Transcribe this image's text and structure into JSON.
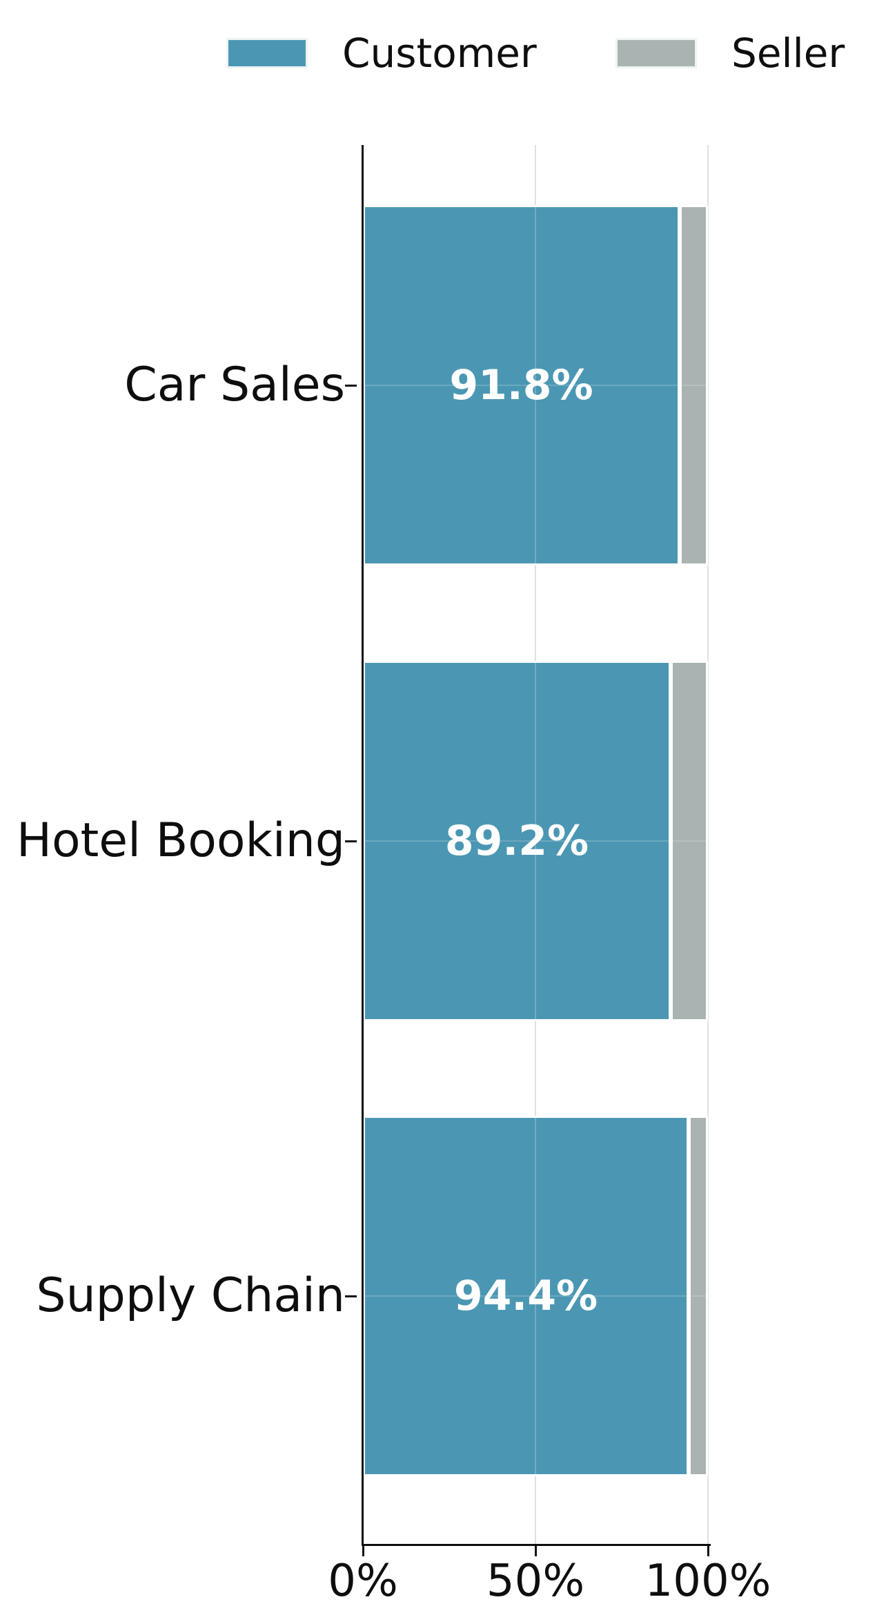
{
  "legend": {
    "entries": [
      {
        "label": "Customer",
        "color": "#4B97B3"
      },
      {
        "label": "Seller",
        "color": "#A9B3B1"
      }
    ]
  },
  "chart_data": {
    "type": "bar",
    "orientation": "horizontal",
    "stacked": true,
    "title": "",
    "xlabel": "",
    "ylabel": "",
    "categories": [
      "Car Sales",
      "Hotel Booking",
      "Supply Chain"
    ],
    "series": [
      {
        "name": "Customer",
        "color": "#4B97B3",
        "values": [
          91.8,
          89.2,
          94.4
        ]
      },
      {
        "name": "Seller",
        "color": "#A9B3B1",
        "values": [
          8.2,
          10.8,
          5.6
        ]
      }
    ],
    "value_labels": [
      "91.8%",
      "89.2%",
      "94.4%"
    ],
    "xticklabels": [
      "0%",
      "50%",
      "100%"
    ],
    "xlim": [
      0,
      100
    ],
    "grid": true,
    "legend_position": "top",
    "bar_label_color": "#ffffff",
    "axis_color": "#0e0e0e",
    "gridline_color": "#e0e0e0"
  }
}
